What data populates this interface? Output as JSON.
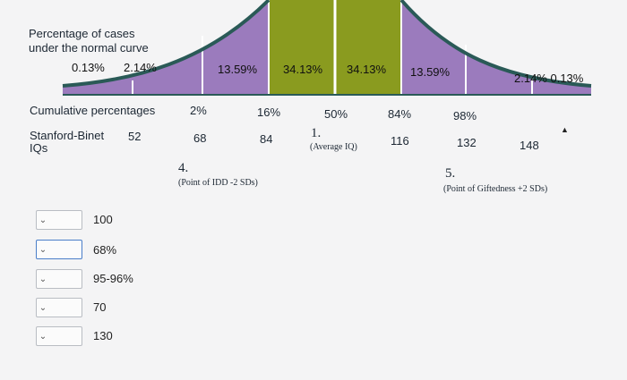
{
  "header": {
    "line1": "Percentage of cases",
    "line2": "under the normal curve"
  },
  "tail_percents": {
    "left_a": "0.13%",
    "left_b": "2.14%",
    "right": "2.14% 0.13%"
  },
  "segments": [
    "13.59%",
    "34.13%",
    "34.13%",
    "13.59%"
  ],
  "cumulative": {
    "label": "Cumulative percentages",
    "values": [
      "2%",
      "16%",
      "50%",
      "84%",
      "98%"
    ]
  },
  "iq": {
    "label_line1": "Stanford-Binet",
    "label_line2": "IQs",
    "values": [
      "52",
      "68",
      "84",
      "116",
      "132",
      "148"
    ]
  },
  "blanks": {
    "b1_num": "1.",
    "b1_caption": "(Average IQ)",
    "b4_num": "4.",
    "b4_caption": "(Point of IDD -2 SDs)",
    "b5_num": "5.",
    "b5_caption": "(Point of Giftedness +2 SDs)"
  },
  "colors": {
    "purple": "#9b7bbd",
    "olive": "#8a9b1f",
    "curve": "#2a5a57"
  },
  "answers": [
    {
      "label": "100"
    },
    {
      "label": "68%"
    },
    {
      "label": "95-96%"
    },
    {
      "label": "70"
    },
    {
      "label": "130"
    }
  ]
}
